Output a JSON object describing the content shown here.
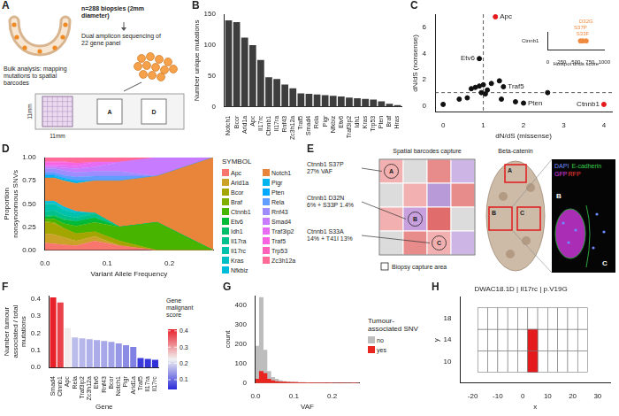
{
  "chart_data": [
    {
      "panel": "B",
      "type": "bar",
      "y_label": "Number unique mutations",
      "categories": [
        "Notch1",
        "Bcor",
        "Arid1a",
        "Apc",
        "Il17rc",
        "Ctnnb1",
        "Il17ra",
        "Rnf43",
        "Zc3h12a",
        "Traf5",
        "Smad4",
        "Rela",
        "Pigr",
        "Nfkbiz",
        "Etv6",
        "Traf3ip2",
        "Idh1",
        "Kras",
        "Trp53",
        "Pten",
        "Braf",
        "Hras"
      ],
      "values": [
        140,
        137,
        112,
        100,
        76,
        48,
        45,
        36,
        30,
        22,
        21,
        20,
        19,
        18,
        17,
        15,
        14,
        13,
        12,
        9,
        5,
        3
      ],
      "color": "#3d3d3d",
      "ylim": [
        0,
        150
      ],
      "yticks": [
        0,
        50,
        100,
        150
      ],
      "grid": false
    },
    {
      "panel": "C",
      "type": "scatter",
      "x_label": "dN/dS (missense)",
      "y_label": "dN/dS (nonsense)",
      "x": [
        1.3,
        0.9,
        1.5,
        2.0,
        4.0,
        0.0,
        0.4,
        0.6,
        0.7,
        0.8,
        0.9,
        1.0,
        1.1,
        1.2,
        1.4,
        0.95,
        1.05,
        1.45,
        1.8,
        2.6
      ],
      "values": [
        6.8,
        3.6,
        1.45,
        0.2,
        0.1,
        0.1,
        0.5,
        0.6,
        1.3,
        1.4,
        1.5,
        1.6,
        1.2,
        1.7,
        1.9,
        1.0,
        0.9,
        0.5,
        0.3,
        1.0
      ],
      "point_labels": [
        "Apc",
        "Etv6",
        "Traf5",
        "Pten",
        "Ctnnb1",
        null,
        null,
        null,
        null,
        null,
        null,
        null,
        null,
        null,
        null,
        null,
        null,
        null,
        null,
        null
      ],
      "colors": [
        "#e41a1c",
        "#111111",
        "#111111",
        "#111111",
        "#e41a1c",
        "#111111",
        "#111111",
        "#111111",
        "#111111",
        "#111111",
        "#111111",
        "#111111",
        "#111111",
        "#111111",
        "#111111",
        "#111111",
        "#111111",
        "#111111",
        "#111111",
        "#111111"
      ],
      "reference_lines": {
        "x": 1,
        "y": 1,
        "line_style": "dashed"
      },
      "xlim": [
        -0.2,
        4.2
      ],
      "xticks": [
        0,
        1,
        2,
        3,
        4
      ],
      "ylim": [
        -0.5,
        7
      ],
      "yticks": [
        0,
        2,
        4,
        6
      ],
      "grid": false,
      "inset": {
        "x_label": "Hotspot dnds score",
        "categories": [
          "Ctnnb1"
        ],
        "y": [
          "Ctnnb1",
          "Ctnnb1",
          "Ctnnb1"
        ],
        "x": [
          620,
          580,
          680
        ],
        "point_labels": [
          "S33F",
          "S37P",
          "D32G"
        ],
        "color": "#f08a3e",
        "xlim": [
          0,
          1000
        ],
        "xticks": [
          0,
          250,
          500,
          750,
          1000
        ]
      }
    },
    {
      "panel": "D",
      "type": "area",
      "stacked": true,
      "x_label": "Variant Allele Frequency",
      "y_label": "Proportion nonsynonmous SNVs",
      "x": [
        0,
        0.015,
        0.03,
        0.05,
        0.08,
        0.12,
        0.18,
        0.27
      ],
      "series": [
        {
          "name": "Apc",
          "color": "#f8766d",
          "values": [
            0.08,
            0.07,
            0.06,
            0.05,
            0.1,
            0.05,
            0,
            0
          ]
        },
        {
          "name": "Arid1a",
          "color": "#c9a227",
          "values": [
            0.1,
            0.1,
            0.08,
            0.05,
            0.05,
            0,
            0,
            0
          ]
        },
        {
          "name": "Bcor",
          "color": "#a3a500",
          "values": [
            0.12,
            0.12,
            0.1,
            0.08,
            0.05,
            0.05,
            0,
            0
          ]
        },
        {
          "name": "Braf",
          "color": "#7fad00",
          "values": [
            0.01,
            0.01,
            0,
            0,
            0,
            0,
            0,
            0
          ]
        },
        {
          "name": "Ctnnb1",
          "color": "#47b400",
          "values": [
            0.03,
            0.04,
            0.05,
            0.08,
            0.1,
            0.15,
            0.3,
            0
          ]
        },
        {
          "name": "Etv6",
          "color": "#00ba38",
          "values": [
            0.02,
            0.03,
            0.04,
            0.05,
            0.05,
            0,
            0,
            0
          ]
        },
        {
          "name": "Idh1",
          "color": "#00be6c",
          "values": [
            0.01,
            0.01,
            0.01,
            0,
            0,
            0,
            0,
            0
          ]
        },
        {
          "name": "Il17ra",
          "color": "#00c08e",
          "values": [
            0.05,
            0.05,
            0.04,
            0.04,
            0.05,
            0,
            0,
            0
          ]
        },
        {
          "name": "Il17rc",
          "color": "#00c1ab",
          "values": [
            0.08,
            0.07,
            0.06,
            0.05,
            0,
            0,
            0,
            0
          ]
        },
        {
          "name": "Kras",
          "color": "#00bfc4",
          "values": [
            0.01,
            0.01,
            0.01,
            0,
            0,
            0,
            0,
            0
          ]
        },
        {
          "name": "Nfkbiz",
          "color": "#00bcda",
          "values": [
            0.02,
            0.02,
            0.02,
            0.02,
            0,
            0,
            0,
            0
          ]
        },
        {
          "name": "Notch1",
          "color": "#e8853a",
          "values": [
            0.25,
            0.25,
            0.28,
            0.3,
            0.35,
            0.5,
            0.5,
            1
          ]
        },
        {
          "name": "Pigr",
          "color": "#00b5ee",
          "values": [
            0.02,
            0.02,
            0.02,
            0.03,
            0,
            0,
            0,
            0
          ]
        },
        {
          "name": "Pten",
          "color": "#00a9ff",
          "values": [
            0.01,
            0.01,
            0.01,
            0,
            0,
            0,
            0,
            0
          ]
        },
        {
          "name": "Rela",
          "color": "#619cff",
          "values": [
            0.03,
            0.03,
            0.03,
            0.04,
            0.05,
            0.05,
            0,
            0
          ]
        },
        {
          "name": "Rnf43",
          "color": "#9f8cff",
          "values": [
            0.04,
            0.04,
            0.05,
            0.05,
            0.05,
            0.05,
            0,
            0
          ]
        },
        {
          "name": "Smad4",
          "color": "#c77cff",
          "values": [
            0.02,
            0.02,
            0.03,
            0.04,
            0.05,
            0.1,
            0.2,
            0
          ]
        },
        {
          "name": "Traf3ip2",
          "color": "#e76bf3",
          "values": [
            0.02,
            0.02,
            0.03,
            0.03,
            0.05,
            0,
            0,
            0
          ]
        },
        {
          "name": "Traf5",
          "color": "#f763e0",
          "values": [
            0.03,
            0.03,
            0.03,
            0.03,
            0,
            0,
            0,
            0
          ]
        },
        {
          "name": "Trp53",
          "color": "#ff62bc",
          "values": [
            0.01,
            0.01,
            0.01,
            0,
            0,
            0,
            0,
            0
          ]
        },
        {
          "name": "Zc3h12a",
          "color": "#ff6a98",
          "values": [
            0.04,
            0.04,
            0.04,
            0.06,
            0.05,
            0.05,
            0,
            0
          ]
        }
      ],
      "xlim": [
        0,
        0.27
      ],
      "xticks": [
        {
          "value": 0,
          "label": "0.0"
        },
        0.1,
        0.2
      ],
      "ylim": [
        0,
        1
      ],
      "yticks": [
        {
          "value": 0,
          "label": "0.00"
        },
        0.25,
        {
          "value": 0.5,
          "label": "0.50"
        },
        0.75,
        {
          "value": 1,
          "label": "1.00"
        }
      ],
      "grid": false,
      "legend": "right",
      "legend_title": "SYMBOL"
    },
    {
      "panel": "F",
      "type": "bar",
      "x_label": "Gene",
      "y_label": "Number tumour associated / total mutations",
      "categories": [
        "Smad4",
        "Ctnnb1",
        "Apc",
        "Rela",
        "Traf3ip2",
        "Zc3h12a",
        "Etv6",
        "Rnf43",
        "Bcor",
        "Notch1",
        "Pigr",
        "Arid1a",
        "Traf5",
        "Il17ra",
        "Il17rc"
      ],
      "values": [
        0.41,
        0.38,
        0.23,
        0.175,
        0.17,
        0.165,
        0.16,
        0.155,
        0.15,
        0.14,
        0.13,
        0.12,
        0.055,
        0.05,
        0.045
      ],
      "ylim": [
        0,
        0.42
      ],
      "yticks": [
        {
          "value": 0,
          "label": "0.0"
        },
        0.1,
        0.2,
        0.3,
        0.4
      ],
      "grid": false,
      "colorbar": {
        "title": "Gene malignant score",
        "range": [
          0.04,
          0.41
        ],
        "ticks": [
          0.1,
          0.2,
          0.3,
          0.4
        ],
        "colors": [
          "#2b2bd9",
          "#f2f2f2",
          "#e8202a"
        ]
      }
    },
    {
      "panel": "G",
      "type": "histogram",
      "x_label": "VAF",
      "y_label": "count",
      "bins": [
        0,
        0.01,
        0.02,
        0.03,
        0.04,
        0.05,
        0.06,
        0.07,
        0.08,
        0.09,
        0.1,
        0.11,
        0.12,
        0.13,
        0.14,
        0.15,
        0.16,
        0.17,
        0.18,
        0.19,
        0.2,
        0.21,
        0.22,
        0.23,
        0.24,
        0.25,
        0.26,
        0.27
      ],
      "series": [
        {
          "name": "no",
          "color": "#bdbdbd",
          "values": [
            190,
            440,
            170,
            60,
            30,
            20,
            12,
            8,
            6,
            5,
            4,
            3,
            3,
            2,
            2,
            1,
            1,
            1,
            0,
            1,
            0,
            0,
            0,
            0,
            0,
            1,
            0
          ]
        },
        {
          "name": "yes",
          "color": "#e8251f",
          "values": [
            20,
            60,
            50,
            20,
            12,
            8,
            6,
            5,
            4,
            3,
            3,
            2,
            2,
            1,
            2,
            1,
            1,
            1,
            1,
            1,
            0,
            0,
            1,
            0,
            0,
            1,
            0
          ]
        }
      ],
      "xlim": [
        0,
        0.27
      ],
      "xticks": [
        {
          "value": 0,
          "label": "0.0"
        },
        0.1,
        0.2
      ],
      "ylim": [
        0,
        450
      ],
      "yticks": [
        0,
        100,
        200,
        300,
        400
      ],
      "grid": false,
      "stacked": false,
      "legend": "right",
      "legend_title": "Tumour-associated SNV"
    },
    {
      "panel": "H",
      "type": "tiles",
      "title": "DWAC18.1D | Il17rc | p.V19G",
      "x_label": "x",
      "y_label": "y",
      "cell_x": [
        -16,
        -12,
        -8,
        -4,
        0,
        4,
        8,
        12,
        16,
        20,
        24
      ],
      "cell_y": [
        10,
        14,
        18
      ],
      "mutated_cells": [
        [
          4,
          14
        ],
        [
          4,
          10
        ]
      ],
      "color": "#e41a1c",
      "xlim": [
        -25,
        35
      ],
      "xticks": [
        -20,
        -10,
        0,
        10,
        20,
        30
      ],
      "ylim": [
        6,
        22
      ],
      "yticks": [
        10,
        14,
        18
      ],
      "grid": false
    }
  ],
  "diagrams": [
    {
      "panel": "A",
      "type": "workflow",
      "heading": "n=288 biopsies (2mm diameter)",
      "step": "Dual amplicon sequencing of 22 gene panel",
      "analysis": "Bulk analysis: mapping mutations to spatial barcodes",
      "dimension_labels": [
        "11mm",
        "11mm"
      ],
      "slide_areas": [
        "A",
        "D"
      ]
    },
    {
      "panel": "E",
      "type": "imaging",
      "grid_title": "Spatial barcodes capture",
      "stain_title": "Beta-catenin",
      "annotations": [
        {
          "lines": [
            "Ctnnb1 S37P",
            "27% VAF"
          ],
          "region": "A"
        },
        {
          "lines": [
            "Ctnnb1 D32N",
            "6% + S33P 1.4%"
          ],
          "region": "B"
        },
        {
          "lines": [
            "Ctnnb1 S33A",
            "14% + T41I 13%"
          ],
          "region": "C"
        }
      ],
      "legend_label": "Biopsy capture area",
      "regions": [
        "A",
        "B",
        "C"
      ],
      "channels": [
        {
          "name": "DAPI",
          "color": "#6f8cff"
        },
        {
          "name": "E-cadherin",
          "color": "#35d04a"
        },
        {
          "name": "GFP",
          "color": "#e23cf0"
        },
        {
          "name": "RFP",
          "color": "#ff3b3b"
        }
      ]
    }
  ]
}
